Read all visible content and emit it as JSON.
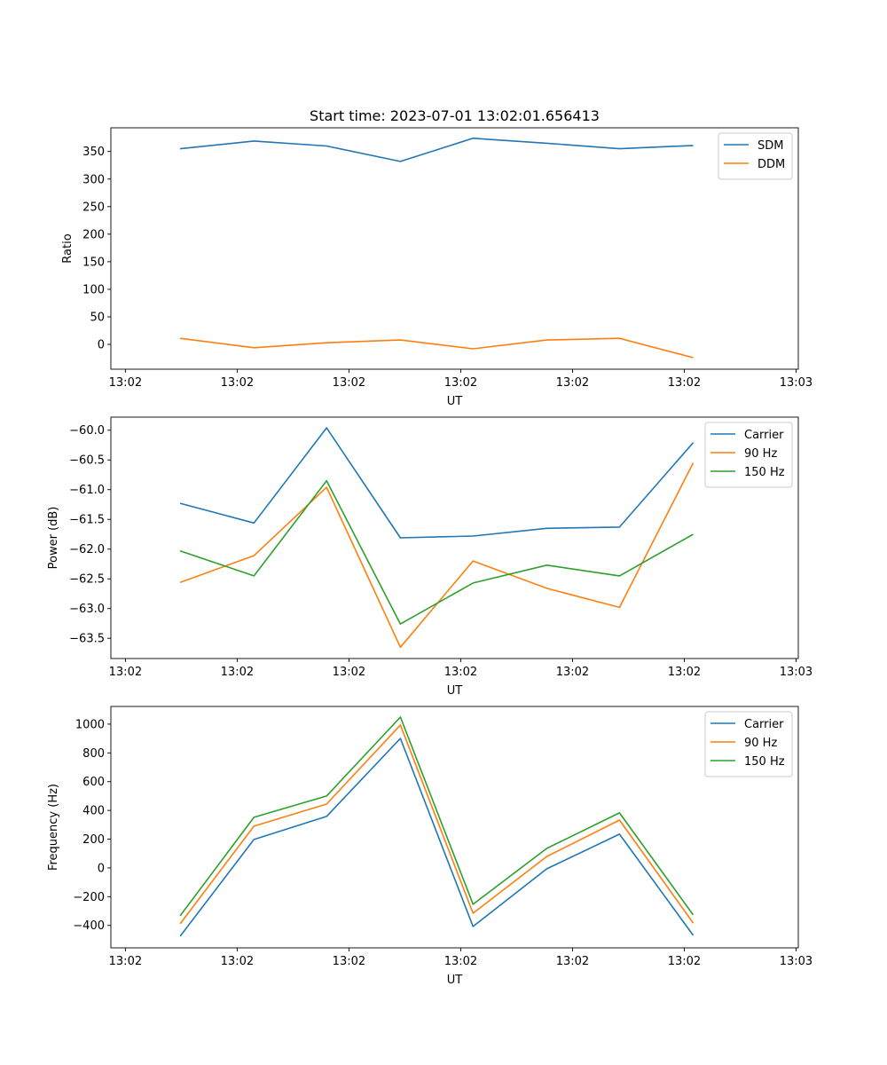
{
  "chart_data": [
    {
      "type": "line",
      "title": "Start time: 2023-07-01 13:02:01.656413",
      "xlabel": "UT",
      "ylabel": "Ratio",
      "x_unit": "seconds after 13:02:00",
      "x": [
        4.9,
        11.5,
        18.0,
        24.6,
        31.1,
        37.7,
        44.2,
        50.8
      ],
      "xlim": [
        -1.3,
        60.2
      ],
      "xticks": [
        0,
        10,
        20,
        30,
        40,
        50,
        60
      ],
      "xtick_labels": [
        "13:02",
        "13:02",
        "13:02",
        "13:02",
        "13:02",
        "13:02",
        "13:03"
      ],
      "ylim": [
        -45,
        393
      ],
      "yticks": [
        0,
        50,
        100,
        150,
        200,
        250,
        300,
        350
      ],
      "ytick_labels": [
        "0",
        "50",
        "100",
        "150",
        "200",
        "250",
        "300",
        "350"
      ],
      "legend": "upper-right",
      "grid": false,
      "series": [
        {
          "name": "SDM",
          "color": "#1f77b4",
          "values": [
            355,
            369,
            360,
            332,
            374,
            365,
            355,
            361
          ]
        },
        {
          "name": "DDM",
          "color": "#ff7f0e",
          "values": [
            11,
            -6,
            3,
            8,
            -8,
            8,
            11,
            -24
          ]
        }
      ]
    },
    {
      "type": "line",
      "title": "",
      "xlabel": "UT",
      "ylabel": "Power (dB)",
      "x_unit": "seconds after 13:02:00",
      "x": [
        4.9,
        11.5,
        18.0,
        24.6,
        31.1,
        37.7,
        44.2,
        50.8
      ],
      "xlim": [
        -1.3,
        60.2
      ],
      "xticks": [
        0,
        10,
        20,
        30,
        40,
        50,
        60
      ],
      "xtick_labels": [
        "13:02",
        "13:02",
        "13:02",
        "13:02",
        "13:02",
        "13:02",
        "13:03"
      ],
      "ylim": [
        -63.84,
        -59.78
      ],
      "yticks": [
        -63.5,
        -63.0,
        -62.5,
        -62.0,
        -61.5,
        -61.0,
        -60.5,
        -60.0
      ],
      "ytick_labels": [
        "−63.5",
        "−63.0",
        "−62.5",
        "−62.0",
        "−61.5",
        "−61.0",
        "−60.5",
        "−60.0"
      ],
      "legend": "upper-right",
      "grid": false,
      "series": [
        {
          "name": "Carrier",
          "color": "#1f77b4",
          "values": [
            -61.23,
            -61.56,
            -59.96,
            -61.81,
            -61.78,
            -61.65,
            -61.63,
            -60.21
          ]
        },
        {
          "name": "90 Hz",
          "color": "#ff7f0e",
          "values": [
            -62.56,
            -62.11,
            -60.96,
            -63.65,
            -62.2,
            -62.66,
            -62.98,
            -60.55
          ]
        },
        {
          "name": "150 Hz",
          "color": "#2ca02c",
          "values": [
            -62.03,
            -62.45,
            -60.85,
            -63.26,
            -62.57,
            -62.27,
            -62.45,
            -61.75
          ]
        }
      ]
    },
    {
      "type": "line",
      "title": "",
      "xlabel": "UT",
      "ylabel": "Frequency (Hz)",
      "x_unit": "seconds after 13:02:00",
      "x": [
        4.9,
        11.5,
        18.0,
        24.6,
        31.1,
        37.7,
        44.2,
        50.8
      ],
      "xlim": [
        -1.3,
        60.2
      ],
      "xticks": [
        0,
        10,
        20,
        30,
        40,
        50,
        60
      ],
      "xtick_labels": [
        "13:02",
        "13:02",
        "13:02",
        "13:02",
        "13:02",
        "13:02",
        "13:03"
      ],
      "ylim": [
        -556,
        1123
      ],
      "yticks": [
        -400,
        -200,
        0,
        200,
        400,
        600,
        800,
        1000
      ],
      "ytick_labels": [
        "−400",
        "−200",
        "0",
        "200",
        "400",
        "600",
        "800",
        "1000"
      ],
      "legend": "upper-right",
      "grid": false,
      "series": [
        {
          "name": "Carrier",
          "color": "#1f77b4",
          "values": [
            -475,
            198,
            358,
            901,
            -407,
            -6,
            235,
            -469
          ]
        },
        {
          "name": "90 Hz",
          "color": "#ff7f0e",
          "values": [
            -389,
            290,
            444,
            994,
            -315,
            80,
            333,
            -383
          ]
        },
        {
          "name": "150 Hz",
          "color": "#2ca02c",
          "values": [
            -333,
            352,
            500,
            1049,
            -253,
            136,
            383,
            -327
          ]
        }
      ]
    }
  ]
}
